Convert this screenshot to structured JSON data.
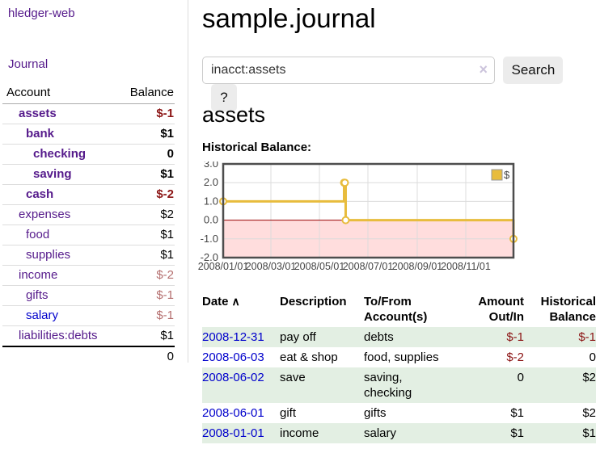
{
  "sidebar": {
    "app_title": "hledger-web",
    "journal_link": "Journal",
    "accounts": {
      "header_account": "Account",
      "header_balance": "Balance",
      "rows": [
        {
          "name": "assets",
          "balance": "$-1"
        },
        {
          "name": "bank",
          "balance": "$1"
        },
        {
          "name": "checking",
          "balance": "0"
        },
        {
          "name": "saving",
          "balance": "$1"
        },
        {
          "name": "cash",
          "balance": "$-2"
        },
        {
          "name": "expenses",
          "balance": "$2"
        },
        {
          "name": "food",
          "balance": "$1"
        },
        {
          "name": "supplies",
          "balance": "$1"
        },
        {
          "name": "income",
          "balance": "$-2"
        },
        {
          "name": "gifts",
          "balance": "$-1"
        },
        {
          "name": "salary",
          "balance": "$-1"
        },
        {
          "name": "liabilities:debts",
          "balance": "$1"
        }
      ],
      "total": "0"
    }
  },
  "main": {
    "title": "sample.journal",
    "search": {
      "value": "inacct:assets",
      "clear_icon": "×",
      "search_button": "Search",
      "help_button": "?"
    },
    "account_heading": "assets",
    "chart_heading": "Historical Balance:"
  },
  "chart_data": {
    "type": "line",
    "step": true,
    "title": "Historical Balance:",
    "series": [
      {
        "name": "$",
        "color": "#e8bc3d",
        "points": [
          [
            "2008-01-01",
            1
          ],
          [
            "2008-06-01",
            2
          ],
          [
            "2008-06-02",
            2
          ],
          [
            "2008-06-03",
            0
          ],
          [
            "2008-12-31",
            -1
          ]
        ]
      }
    ],
    "x_range": [
      "2008-01-01",
      "2008-12-31"
    ],
    "ylim": [
      -2,
      3
    ],
    "yticks": [
      3,
      2,
      1,
      0,
      -1,
      -2
    ],
    "xticks": [
      "2008/01/01",
      "2008/03/01",
      "2008/05/01",
      "2008/07/01",
      "2008/09/01",
      "2008/11/01"
    ],
    "legend_position": "top-right",
    "grid": true,
    "negative_region_color": "#ffdddd",
    "zero_line_color": "#990000"
  },
  "transactions": {
    "headers": {
      "date": "Date",
      "sort_icon": "∧",
      "description": "Description",
      "accounts_line1": "To/From",
      "accounts_line2": "Account(s)",
      "amount_line1": "Amount",
      "amount_line2": "Out/In",
      "balance_line1": "Historical",
      "balance_line2": "Balance"
    },
    "rows": [
      {
        "date": "2008-12-31",
        "description": "pay off",
        "accounts": "debts",
        "amount": "$-1",
        "balance": "$-1"
      },
      {
        "date": "2008-06-03",
        "description": "eat & shop",
        "accounts": "food, supplies",
        "amount": "$-2",
        "balance": "0"
      },
      {
        "date": "2008-06-02",
        "description": "save",
        "accounts": "saving,\nchecking",
        "amount": "0",
        "balance": "$2"
      },
      {
        "date": "2008-06-01",
        "description": "gift",
        "accounts": "gifts",
        "amount": "$1",
        "balance": "$2"
      },
      {
        "date": "2008-01-01",
        "description": "income",
        "accounts": "salary",
        "amount": "$1",
        "balance": "$1"
      }
    ]
  }
}
